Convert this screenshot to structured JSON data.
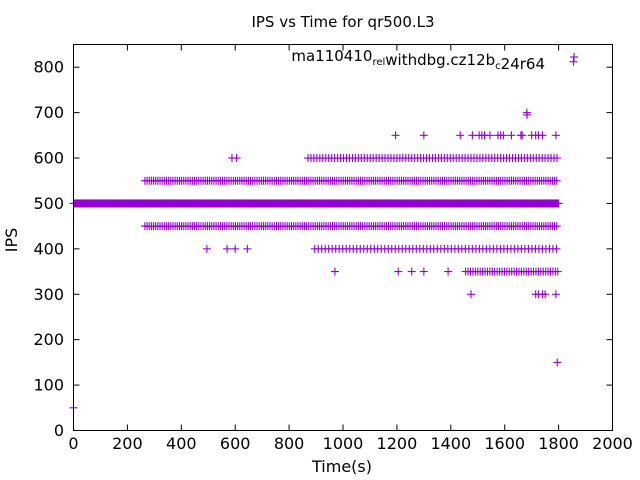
{
  "chart_data": {
    "type": "scatter",
    "title": "IPS vs Time for qr500.L3",
    "xlabel": "Time(s)",
    "ylabel": "IPS",
    "xlim": [
      0,
      2000
    ],
    "ylim": [
      0,
      850
    ],
    "x_ticks": [
      0,
      200,
      400,
      600,
      800,
      1000,
      1200,
      1400,
      1600,
      1800,
      2000
    ],
    "y_ticks": [
      0,
      100,
      200,
      300,
      400,
      500,
      600,
      700,
      800
    ],
    "grid": false,
    "legend": {
      "position": "top-right",
      "parts": [
        {
          "text": "ma110410",
          "sub": false
        },
        {
          "text": "rel",
          "sub": true
        },
        {
          "text": "withdbg.cz12b",
          "sub": false
        },
        {
          "text": "c",
          "sub": true
        },
        {
          "text": "24r64",
          "sub": false
        }
      ]
    },
    "color": "#9400d3",
    "series": [
      {
        "dense_ranges": [
          {
            "y": 500,
            "from": 0,
            "to": 1800,
            "step": 3
          },
          {
            "y": 550,
            "from": 265,
            "to": 1800,
            "step": 8
          },
          {
            "y": 450,
            "from": 265,
            "to": 1800,
            "step": 8
          },
          {
            "y": 600,
            "from": 870,
            "to": 1800,
            "step": 11
          },
          {
            "y": 400,
            "from": 895,
            "to": 1800,
            "step": 13
          },
          {
            "y": 350,
            "from": 1455,
            "to": 1800,
            "step": 9
          }
        ],
        "points": [
          [
            0,
            50
          ],
          [
            1855,
            812
          ],
          [
            1682,
            700
          ],
          [
            1683,
            695
          ],
          [
            1195,
            650
          ],
          [
            1300,
            650
          ],
          [
            1435,
            650
          ],
          [
            1480,
            650
          ],
          [
            1505,
            650
          ],
          [
            1515,
            650
          ],
          [
            1525,
            650
          ],
          [
            1545,
            650
          ],
          [
            1575,
            650
          ],
          [
            1585,
            650
          ],
          [
            1595,
            650
          ],
          [
            1625,
            650
          ],
          [
            1660,
            650
          ],
          [
            1665,
            650
          ],
          [
            1700,
            650
          ],
          [
            1715,
            650
          ],
          [
            1725,
            650
          ],
          [
            1740,
            650
          ],
          [
            1790,
            650
          ],
          [
            588,
            600
          ],
          [
            605,
            600
          ],
          [
            495,
            400
          ],
          [
            570,
            400
          ],
          [
            600,
            400
          ],
          [
            645,
            400
          ],
          [
            970,
            350
          ],
          [
            1205,
            350
          ],
          [
            1255,
            350
          ],
          [
            1300,
            350
          ],
          [
            1390,
            350
          ],
          [
            1475,
            300
          ],
          [
            1715,
            300
          ],
          [
            1725,
            300
          ],
          [
            1740,
            300
          ],
          [
            1750,
            300
          ],
          [
            1790,
            300
          ],
          [
            1795,
            150
          ]
        ]
      }
    ]
  }
}
